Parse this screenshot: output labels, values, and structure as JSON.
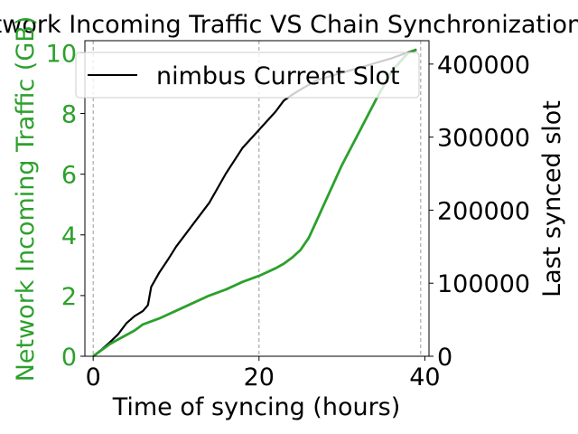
{
  "chart_data": {
    "type": "line",
    "title": "Network Incoming Traffic VS Chain Synchronization",
    "xlabel": "Time of syncing (hours)",
    "ylabel_left": "Network Incoming Traffic (GB)",
    "ylabel_right": "Last synced slot",
    "xlim": [
      -1,
      40.5
    ],
    "ylim_left": [
      0,
      10.4
    ],
    "ylim_right": [
      0,
      432000
    ],
    "x_ticks": [
      0,
      20,
      40
    ],
    "y_ticks_left": [
      0,
      2,
      4,
      6,
      8,
      10
    ],
    "y_ticks_right": [
      0,
      100000,
      200000,
      300000,
      400000
    ],
    "x_vlines": [
      0,
      20,
      39.5
    ],
    "legend": {
      "position": "top",
      "label": "nimbus Current Slot"
    },
    "colors": {
      "traffic": "#2ca02c",
      "slot": "#000000",
      "left_axis_text": "#2ca02c"
    },
    "series": [
      {
        "name": "nimbus Current Slot",
        "axis": "right",
        "x": [
          0,
          1,
          2,
          3,
          4,
          5,
          6,
          6.6,
          7,
          8,
          9,
          10,
          12,
          14,
          16,
          18,
          20,
          22,
          23,
          24,
          25,
          27,
          30,
          33,
          36,
          39
        ],
        "y": [
          0,
          9000,
          19000,
          30000,
          45000,
          55000,
          62000,
          70000,
          95000,
          115000,
          132000,
          150000,
          180000,
          210000,
          250000,
          285000,
          310000,
          335000,
          350000,
          358000,
          365000,
          378000,
          388000,
          398000,
          408000,
          420000
        ]
      },
      {
        "name": "",
        "axis": "left",
        "x": [
          0,
          1,
          2,
          3,
          4,
          5,
          6,
          8,
          10,
          12,
          14,
          16,
          18,
          20,
          22,
          23,
          24,
          25,
          26,
          27,
          28,
          30,
          32,
          34,
          36,
          38,
          39
        ],
        "y": [
          0,
          0.2,
          0.4,
          0.55,
          0.7,
          0.85,
          1.05,
          1.25,
          1.5,
          1.75,
          2.0,
          2.2,
          2.45,
          2.65,
          2.9,
          3.05,
          3.25,
          3.5,
          3.9,
          4.5,
          5.1,
          6.3,
          7.35,
          8.4,
          9.4,
          10.0,
          10.1
        ]
      }
    ]
  }
}
